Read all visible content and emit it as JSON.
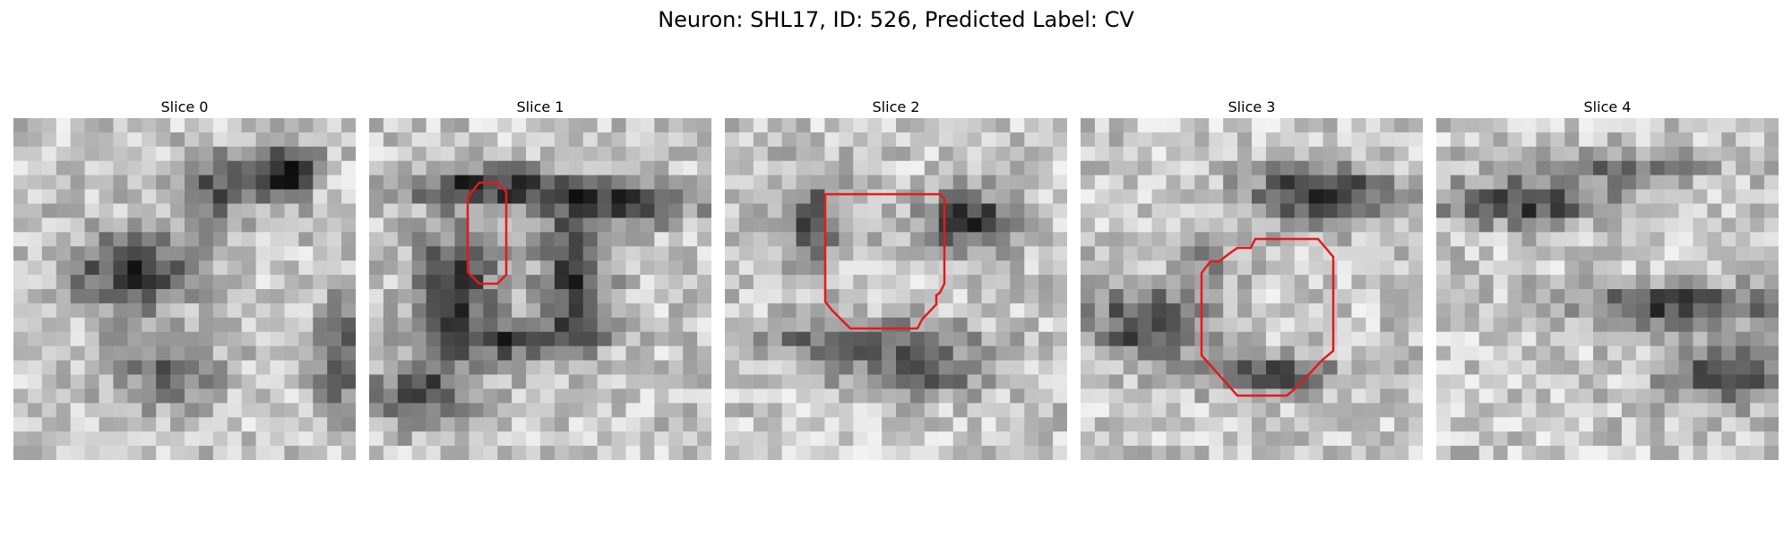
{
  "figure": {
    "title": "Neuron: SHL17, ID: 526, Predicted Label: CV",
    "colormap": "grayscale",
    "outline_color": "#e41a1c"
  },
  "slices": [
    {
      "label": "Slice 0",
      "has_outline": false
    },
    {
      "label": "Slice 1",
      "has_outline": true
    },
    {
      "label": "Slice 2",
      "has_outline": true
    },
    {
      "label": "Slice 3",
      "has_outline": true
    },
    {
      "label": "Slice 4",
      "has_outline": false
    }
  ]
}
